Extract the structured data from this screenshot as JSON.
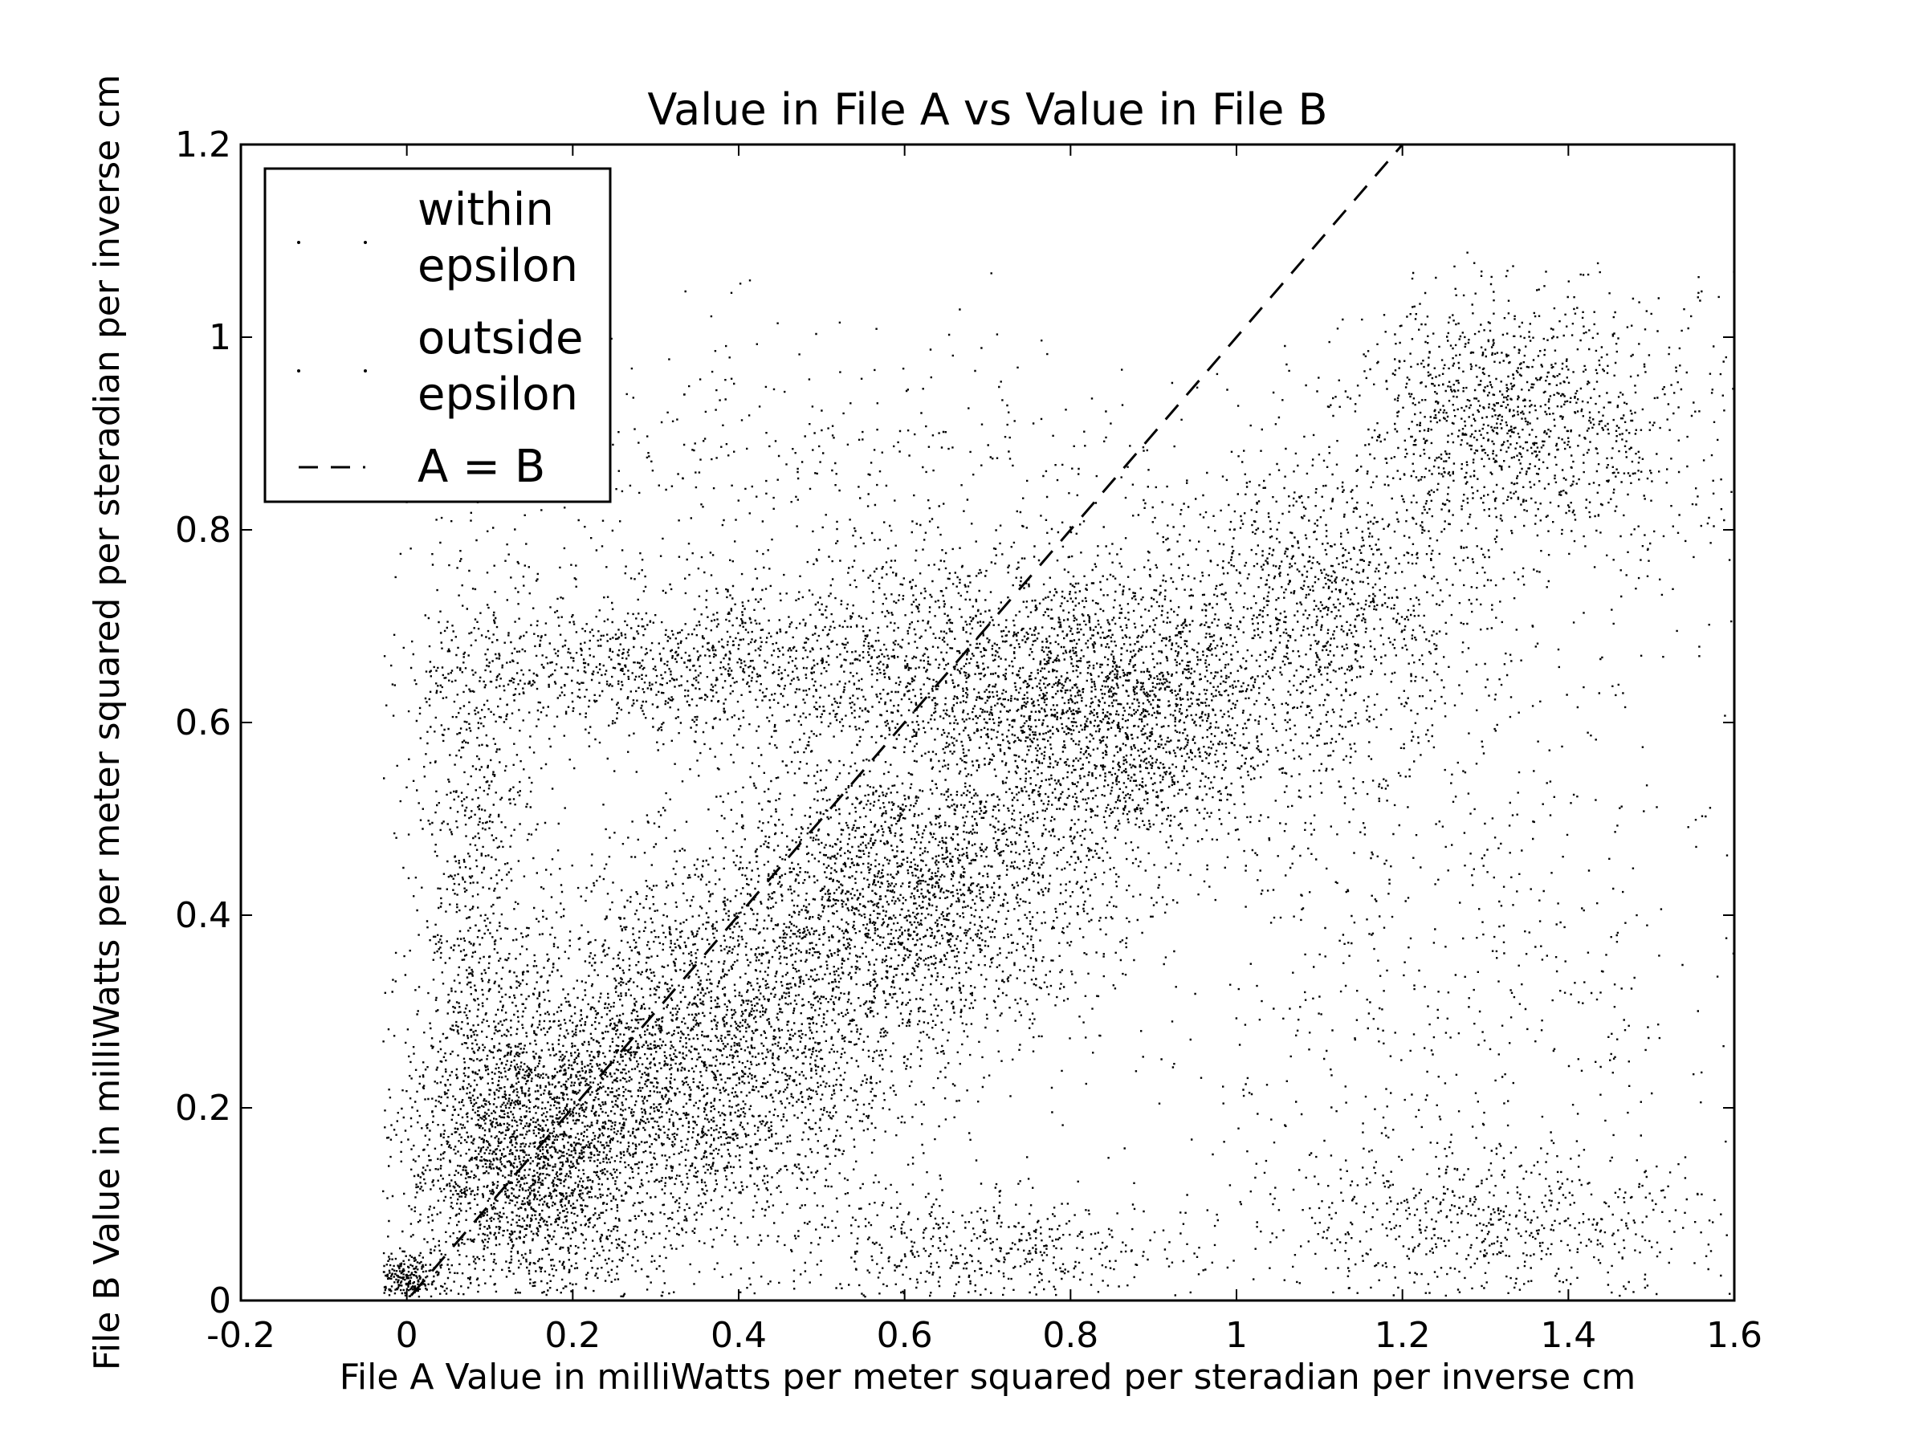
{
  "chart_data": {
    "type": "scatter",
    "title": "Value in File A vs Value in File B",
    "xlabel": "File A Value in milliWatts per meter squared per steradian per inverse cm",
    "ylabel": "File B Value in milliWatts per meter squared per steradian per inverse cm",
    "xlim": [
      -0.2,
      1.6
    ],
    "ylim": [
      0,
      1.2
    ],
    "xticks": [
      "-0.2",
      "0",
      "0.2",
      "0.4",
      "0.6",
      "0.8",
      "1",
      "1.2",
      "1.4",
      "1.6"
    ],
    "yticks": [
      "0",
      "0.2",
      "0.4",
      "0.6",
      "0.8",
      "1",
      "1.2"
    ],
    "grid": false,
    "legend_position": "top-left",
    "series": [
      {
        "name": "within epsilon",
        "marker": "point",
        "color": "#000000",
        "clusters": [
          {
            "cx": 0.0,
            "cy": 0.02,
            "sx": 0.02,
            "sy": 0.015,
            "n": 300
          },
          {
            "cx": 0.15,
            "cy": 0.15,
            "sx": 0.08,
            "sy": 0.08,
            "n": 2500
          },
          {
            "cx": 0.35,
            "cy": 0.25,
            "sx": 0.12,
            "sy": 0.1,
            "n": 3000
          },
          {
            "cx": 0.6,
            "cy": 0.42,
            "sx": 0.12,
            "sy": 0.08,
            "n": 2500
          },
          {
            "cx": 0.85,
            "cy": 0.6,
            "sx": 0.1,
            "sy": 0.08,
            "n": 2000
          },
          {
            "cx": 1.1,
            "cy": 0.72,
            "sx": 0.1,
            "sy": 0.08,
            "n": 1200
          },
          {
            "cx": 1.3,
            "cy": 0.92,
            "sx": 0.08,
            "sy": 0.06,
            "n": 900
          },
          {
            "cx": 0.3,
            "cy": 0.66,
            "sx": 0.15,
            "sy": 0.04,
            "n": 1000
          },
          {
            "cx": 0.65,
            "cy": 0.66,
            "sx": 0.15,
            "sy": 0.06,
            "n": 1200
          }
        ]
      },
      {
        "name": "outside epsilon",
        "marker": "point",
        "color": "#000000",
        "clusters": [
          {
            "cx": 0.5,
            "cy": 0.85,
            "sx": 0.25,
            "sy": 0.08,
            "n": 500
          },
          {
            "cx": 1.25,
            "cy": 0.35,
            "sx": 0.18,
            "sy": 0.25,
            "n": 900
          },
          {
            "cx": 1.3,
            "cy": 0.08,
            "sx": 0.15,
            "sy": 0.04,
            "n": 600
          },
          {
            "cx": 1.45,
            "cy": 0.9,
            "sx": 0.08,
            "sy": 0.08,
            "n": 400
          },
          {
            "cx": 0.7,
            "cy": 0.05,
            "sx": 0.12,
            "sy": 0.03,
            "n": 500
          },
          {
            "cx": 0.08,
            "cy": 0.45,
            "sx": 0.04,
            "sy": 0.18,
            "n": 800
          }
        ]
      },
      {
        "name": "A = B",
        "type": "line",
        "style": "dashed",
        "color": "#000000",
        "x": [
          -0.02,
          1.2
        ],
        "y": [
          -0.02,
          1.2
        ]
      }
    ]
  }
}
